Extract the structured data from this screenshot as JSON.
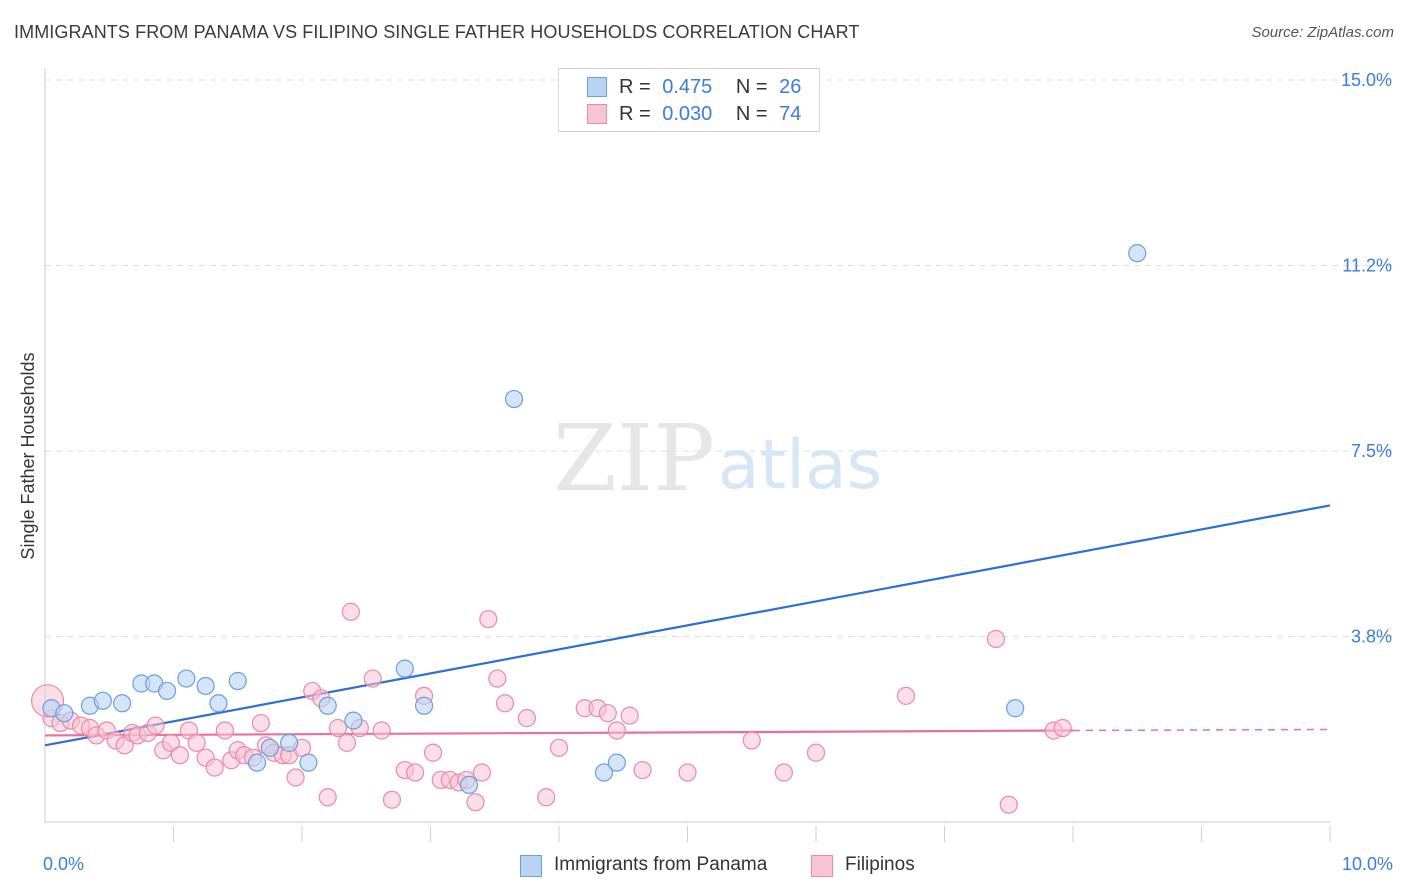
{
  "header": {
    "title": "IMMIGRANTS FROM PANAMA VS FILIPINO SINGLE FATHER HOUSEHOLDS CORRELATION CHART",
    "source": "Source: ZipAtlas.com"
  },
  "watermark": {
    "zip": "ZIP",
    "atlas": "atlas"
  },
  "legend_top": {
    "rows": [
      {
        "r_label": "R =",
        "r_value": "0.475",
        "n_label": "N =",
        "n_value": "26"
      },
      {
        "r_label": "R =",
        "r_value": "0.030",
        "n_label": "N =",
        "n_value": "74"
      }
    ]
  },
  "legend_bottom": {
    "items": [
      "Immigrants from Panama",
      "Filipinos"
    ]
  },
  "colors": {
    "blue_fill": "#b9d3f3",
    "blue_stroke": "#6a9fe0",
    "blue_line": "#2f6fd0",
    "pink_fill": "#f8c3d3",
    "pink_stroke": "#e98aa8",
    "pink_line": "#e8709a",
    "tick_label": "#3b7dd8",
    "grid": "#dddddd"
  },
  "chart_data": {
    "type": "scatter",
    "title": "IMMIGRANTS FROM PANAMA VS FILIPINO SINGLE FATHER HOUSEHOLDS CORRELATION CHART",
    "xlabel": "",
    "ylabel": "Single Father Households",
    "xlim": [
      0,
      10
    ],
    "ylim": [
      0,
      15
    ],
    "x_tick_labels": [
      "0.0%",
      "10.0%"
    ],
    "x_tick_values": [
      0,
      10
    ],
    "y_tick_labels": [
      "3.8%",
      "7.5%",
      "11.2%",
      "15.0%"
    ],
    "y_tick_values": [
      3.75,
      7.5,
      11.25,
      15.0
    ],
    "grid": true,
    "legend_position": "top-center",
    "series": [
      {
        "name": "Immigrants from Panama",
        "color": "#6a9fe0",
        "trend": {
          "x": [
            0,
            10
          ],
          "y": [
            1.55,
            6.4
          ]
        },
        "points": [
          {
            "x": 0.05,
            "y": 2.3
          },
          {
            "x": 0.15,
            "y": 2.2
          },
          {
            "x": 0.35,
            "y": 2.35
          },
          {
            "x": 0.45,
            "y": 2.45
          },
          {
            "x": 0.6,
            "y": 2.4
          },
          {
            "x": 0.75,
            "y": 2.8
          },
          {
            "x": 0.85,
            "y": 2.8
          },
          {
            "x": 0.95,
            "y": 2.65
          },
          {
            "x": 1.1,
            "y": 2.9
          },
          {
            "x": 1.25,
            "y": 2.75
          },
          {
            "x": 1.35,
            "y": 2.4
          },
          {
            "x": 1.5,
            "y": 2.85
          },
          {
            "x": 1.65,
            "y": 1.2
          },
          {
            "x": 1.75,
            "y": 1.5
          },
          {
            "x": 1.9,
            "y": 1.6
          },
          {
            "x": 2.05,
            "y": 1.2
          },
          {
            "x": 2.2,
            "y": 2.35
          },
          {
            "x": 2.4,
            "y": 2.05
          },
          {
            "x": 2.8,
            "y": 3.1
          },
          {
            "x": 2.95,
            "y": 2.35
          },
          {
            "x": 3.3,
            "y": 0.75
          },
          {
            "x": 3.65,
            "y": 8.55
          },
          {
            "x": 4.35,
            "y": 1.0
          },
          {
            "x": 4.45,
            "y": 1.2
          },
          {
            "x": 7.55,
            "y": 2.3
          },
          {
            "x": 8.5,
            "y": 11.5
          }
        ]
      },
      {
        "name": "Filipinos",
        "color": "#e98aa8",
        "trend": {
          "x": [
            0,
            8.0
          ],
          "y": [
            1.75,
            1.85
          ],
          "dashed_to_x": 10,
          "dashed_to_y": 1.87
        },
        "points": [
          {
            "x": 0.05,
            "y": 2.1
          },
          {
            "x": 0.12,
            "y": 2.0
          },
          {
            "x": 0.2,
            "y": 2.05
          },
          {
            "x": 0.28,
            "y": 1.95
          },
          {
            "x": 0.35,
            "y": 1.9
          },
          {
            "x": 0.4,
            "y": 1.75
          },
          {
            "x": 0.48,
            "y": 1.85
          },
          {
            "x": 0.55,
            "y": 1.65
          },
          {
            "x": 0.62,
            "y": 1.55
          },
          {
            "x": 0.68,
            "y": 1.8
          },
          {
            "x": 0.72,
            "y": 1.75
          },
          {
            "x": 0.8,
            "y": 1.8
          },
          {
            "x": 0.86,
            "y": 1.95
          },
          {
            "x": 0.92,
            "y": 1.45
          },
          {
            "x": 0.98,
            "y": 1.6
          },
          {
            "x": 1.05,
            "y": 1.35
          },
          {
            "x": 1.12,
            "y": 1.85
          },
          {
            "x": 1.18,
            "y": 1.6
          },
          {
            "x": 1.25,
            "y": 1.3
          },
          {
            "x": 1.32,
            "y": 1.1
          },
          {
            "x": 1.4,
            "y": 1.85
          },
          {
            "x": 1.45,
            "y": 1.25
          },
          {
            "x": 1.5,
            "y": 1.45
          },
          {
            "x": 1.55,
            "y": 1.35
          },
          {
            "x": 1.62,
            "y": 1.3
          },
          {
            "x": 1.68,
            "y": 2.0
          },
          {
            "x": 1.72,
            "y": 1.55
          },
          {
            "x": 1.78,
            "y": 1.4
          },
          {
            "x": 1.85,
            "y": 1.35
          },
          {
            "x": 1.9,
            "y": 1.35
          },
          {
            "x": 1.95,
            "y": 0.9
          },
          {
            "x": 2.0,
            "y": 1.5
          },
          {
            "x": 2.08,
            "y": 2.65
          },
          {
            "x": 2.15,
            "y": 2.5
          },
          {
            "x": 2.2,
            "y": 0.5
          },
          {
            "x": 2.28,
            "y": 1.9
          },
          {
            "x": 2.35,
            "y": 1.6
          },
          {
            "x": 2.38,
            "y": 4.25
          },
          {
            "x": 2.45,
            "y": 1.9
          },
          {
            "x": 2.55,
            "y": 2.9
          },
          {
            "x": 2.62,
            "y": 1.85
          },
          {
            "x": 2.7,
            "y": 0.45
          },
          {
            "x": 2.8,
            "y": 1.05
          },
          {
            "x": 2.88,
            "y": 1.0
          },
          {
            "x": 2.95,
            "y": 2.55
          },
          {
            "x": 3.02,
            "y": 1.4
          },
          {
            "x": 3.08,
            "y": 0.85
          },
          {
            "x": 3.15,
            "y": 0.85
          },
          {
            "x": 3.22,
            "y": 0.8
          },
          {
            "x": 3.28,
            "y": 0.85
          },
          {
            "x": 3.35,
            "y": 0.4
          },
          {
            "x": 3.4,
            "y": 1.0
          },
          {
            "x": 3.45,
            "y": 4.1
          },
          {
            "x": 3.52,
            "y": 2.9
          },
          {
            "x": 3.58,
            "y": 2.4
          },
          {
            "x": 3.75,
            "y": 2.1
          },
          {
            "x": 3.9,
            "y": 0.5
          },
          {
            "x": 4.0,
            "y": 1.5
          },
          {
            "x": 4.2,
            "y": 2.3
          },
          {
            "x": 4.3,
            "y": 2.3
          },
          {
            "x": 4.38,
            "y": 2.2
          },
          {
            "x": 4.45,
            "y": 1.85
          },
          {
            "x": 4.55,
            "y": 2.15
          },
          {
            "x": 4.65,
            "y": 1.05
          },
          {
            "x": 5.0,
            "y": 1.0
          },
          {
            "x": 5.5,
            "y": 1.65
          },
          {
            "x": 5.75,
            "y": 1.0
          },
          {
            "x": 6.0,
            "y": 1.4
          },
          {
            "x": 6.7,
            "y": 2.55
          },
          {
            "x": 7.4,
            "y": 3.7
          },
          {
            "x": 7.5,
            "y": 0.35
          },
          {
            "x": 7.85,
            "y": 1.85
          },
          {
            "x": 7.92,
            "y": 1.9
          },
          {
            "x": 0.02,
            "y": 2.45
          }
        ]
      }
    ]
  }
}
